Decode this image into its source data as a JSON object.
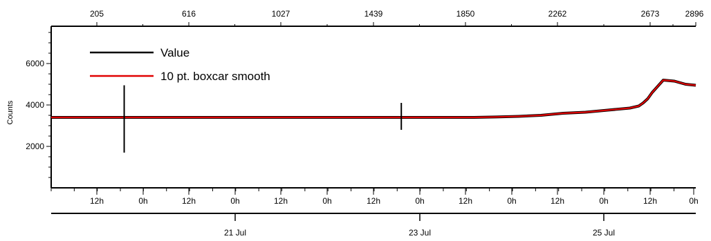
{
  "chart_data": {
    "type": "line",
    "title": "",
    "ylabel": "Counts",
    "ylim": [
      0,
      7800
    ],
    "y_ticks": [
      2000,
      4000,
      6000
    ],
    "top_axis": {
      "tick_labels": [
        "205",
        "616",
        "1027",
        "1439",
        "1850",
        "2262",
        "2673",
        "2896"
      ],
      "range": [
        0,
        2896
      ]
    },
    "bottom_axis": {
      "hour_labels": [
        "12h",
        "0h",
        "12h",
        "0h",
        "12h",
        "0h",
        "12h",
        "0h",
        "12h",
        "0h",
        "12h",
        "0h",
        "12h",
        "0h"
      ],
      "date_labels": [
        "21 Jul",
        "23 Jul",
        "25 Jul"
      ]
    },
    "grid": false,
    "legend": {
      "placement": "top-left",
      "items": [
        {
          "name": "Value",
          "color": "#000000"
        },
        {
          "name": "10 pt. boxcar smooth",
          "color": "#e00000"
        }
      ]
    },
    "series": [
      {
        "name": "Value",
        "color": "#000000",
        "x": [
          0,
          100,
          200,
          300,
          400,
          500,
          600,
          700,
          800,
          900,
          1000,
          1100,
          1200,
          1300,
          1400,
          1500,
          1600,
          1700,
          1800,
          1900,
          2000,
          2100,
          2200,
          2300,
          2400,
          2500,
          2600,
          2640,
          2660,
          2680,
          2700,
          2750,
          2800,
          2850,
          2896
        ],
        "y": [
          3400,
          3400,
          3400,
          3400,
          3400,
          3400,
          3400,
          3400,
          3400,
          3400,
          3400,
          3400,
          3400,
          3400,
          3400,
          3400,
          3400,
          3400,
          3400,
          3400,
          3420,
          3450,
          3500,
          3600,
          3650,
          3750,
          3850,
          3950,
          4100,
          4300,
          4600,
          5200,
          5150,
          5000,
          4950
        ]
      },
      {
        "name": "10 pt. boxcar smooth",
        "color": "#e00000",
        "x": [
          0,
          100,
          200,
          300,
          400,
          500,
          600,
          700,
          800,
          900,
          1000,
          1100,
          1200,
          1300,
          1400,
          1500,
          1600,
          1700,
          1800,
          1900,
          2000,
          2100,
          2200,
          2300,
          2400,
          2500,
          2600,
          2640,
          2660,
          2680,
          2700,
          2750,
          2800,
          2850,
          2896
        ],
        "y": [
          3400,
          3400,
          3400,
          3400,
          3400,
          3400,
          3400,
          3400,
          3400,
          3400,
          3400,
          3400,
          3400,
          3400,
          3400,
          3400,
          3400,
          3400,
          3400,
          3400,
          3420,
          3450,
          3500,
          3600,
          3650,
          3750,
          3850,
          3950,
          4100,
          4300,
          4600,
          5200,
          5150,
          5000,
          4950
        ]
      }
    ],
    "spikes": [
      {
        "x": 328,
        "ymin": 1700,
        "ymax": 4950
      },
      {
        "x": 1573,
        "ymin": 2800,
        "ymax": 4100
      }
    ]
  }
}
